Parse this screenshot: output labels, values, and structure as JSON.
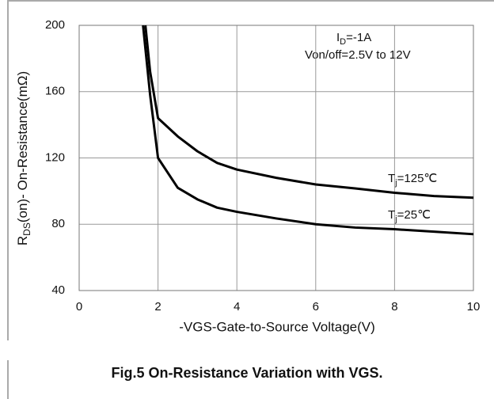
{
  "chart_data": {
    "type": "line",
    "caption": "Fig.5 On-Resistance Variation with VGS.",
    "x_label": "-VGS-Gate-to-Source  Voltage(V)",
    "y_label": [
      "R",
      "DS",
      "(on)- On-Resistance(mΩ)"
    ],
    "conditions": [
      [
        "I",
        "D",
        "=-1A"
      ],
      [
        "Von/off=2.5V to 12V"
      ]
    ],
    "xlim": [
      0,
      10
    ],
    "xticks": [
      0,
      2,
      4,
      6,
      8,
      10
    ],
    "ylim": [
      40,
      200
    ],
    "yticks": [
      40,
      80,
      120,
      160,
      200
    ],
    "grid": true,
    "series": [
      {
        "name": [
          "T",
          "j",
          "=125℃"
        ],
        "color": "#000000",
        "x": [
          1.68,
          1.8,
          2,
          2.5,
          3,
          3.5,
          4,
          5,
          6,
          7,
          8,
          9,
          10
        ],
        "values": [
          200,
          172,
          144,
          133,
          124,
          117,
          113,
          108,
          104,
          101.6,
          99,
          97,
          96
        ]
      },
      {
        "name": [
          "T",
          "j",
          "=25℃"
        ],
        "color": "#000000",
        "x": [
          1.62,
          1.8,
          2,
          2.5,
          3,
          3.5,
          4,
          5,
          6,
          7,
          8,
          9,
          10
        ],
        "values": [
          200,
          158,
          120,
          102,
          95,
          90,
          87.5,
          83.5,
          80,
          78,
          77,
          75.5,
          74
        ]
      }
    ]
  }
}
